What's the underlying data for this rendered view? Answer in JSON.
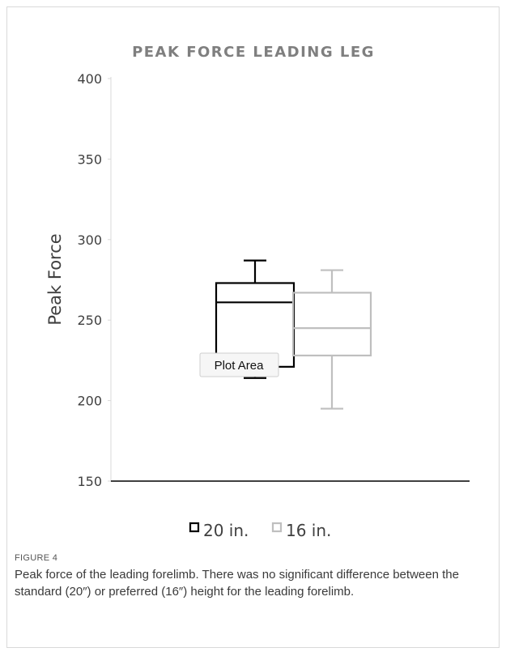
{
  "chart_data": {
    "type": "box",
    "title": "PEAK FORCE LEADING LEG",
    "ylabel": "Peak Force",
    "xlabel": "",
    "ylim": [
      150,
      400
    ],
    "yticks": [
      150,
      200,
      250,
      300,
      350,
      400
    ],
    "tick_labels": [
      "150",
      "200",
      "250",
      "300",
      "350",
      "400"
    ],
    "legend_placement": "bottom",
    "series": [
      {
        "name": "20 in.",
        "color": "#000000",
        "whisker_low": 214,
        "q1": 221,
        "median": 261,
        "q3": 273,
        "whisker_high": 287
      },
      {
        "name": "16 in.",
        "color": "#bfbfbf",
        "whisker_low": 195,
        "q1": 228,
        "median": 245,
        "q3": 267,
        "whisker_high": 281
      }
    ],
    "tooltip": "Plot Area"
  },
  "caption": {
    "label": "FIGURE 4",
    "text": "Peak force of the leading forelimb. There was no significant difference between the standard (20″) or preferred (16″) height for the leading forelimb."
  }
}
